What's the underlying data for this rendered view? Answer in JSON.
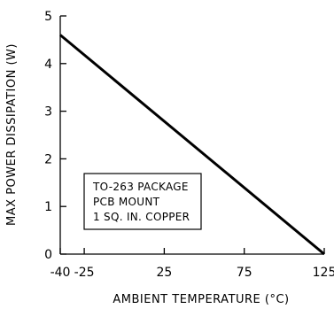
{
  "chart_data": {
    "type": "line",
    "title": "",
    "xlabel": "AMBIENT TEMPERATURE (°C)",
    "ylabel": "MAX POWER DISSIPATION (W)",
    "xlim": [
      -40,
      125
    ],
    "ylim": [
      0,
      5
    ],
    "x_ticks": [
      -40,
      -25,
      25,
      75,
      125
    ],
    "y_ticks": [
      0,
      1,
      2,
      3,
      4,
      5
    ],
    "grid": false,
    "series": [
      {
        "x": [
          -40,
          125
        ],
        "y": [
          4.6,
          0
        ]
      }
    ],
    "annotation": [
      "TO-263 PACKAGE",
      "PCB MOUNT",
      "1 SQ. IN. COPPER"
    ]
  }
}
